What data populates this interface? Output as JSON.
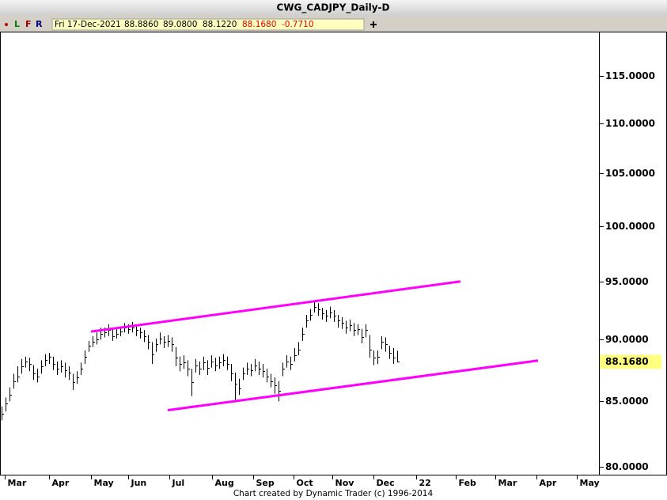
{
  "toolbar": {
    "buttons": [
      "L",
      "F",
      "R"
    ],
    "date": "Fri 17-Dec-2021",
    "open": "88.8860",
    "high": "89.0800",
    "low": "88.1220",
    "close": "88.1680",
    "change": "-0.7710"
  },
  "footer": "Chart created by Dynamic Trader  (c) 1996-2014",
  "chart_data": {
    "type": "ohlc",
    "title": "CWG_CADJPY_Daily-D",
    "log_scale": true,
    "color": "#000000",
    "xlim": [
      -0.4,
      151
    ],
    "ylim": [
      79.4,
      119.7
    ],
    "yticks": [
      {
        "value": 80,
        "label": "80.0000"
      },
      {
        "value": 85,
        "label": "85.0000"
      },
      {
        "value": 90,
        "label": "90.0000"
      },
      {
        "value": 95,
        "label": "95.0000"
      },
      {
        "value": 100,
        "label": "100.0000"
      },
      {
        "value": 105,
        "label": "105.0000"
      },
      {
        "value": 110,
        "label": "110.0000"
      },
      {
        "value": 115,
        "label": "115.0000"
      }
    ],
    "xticks": [
      {
        "value": 0.8,
        "label": "Mar"
      },
      {
        "value": 12,
        "label": "Apr"
      },
      {
        "value": 22.6,
        "label": "May"
      },
      {
        "value": 32,
        "label": "Jun"
      },
      {
        "value": 42.4,
        "label": "Jul"
      },
      {
        "value": 53.2,
        "label": "Aug"
      },
      {
        "value": 63.6,
        "label": "Sep"
      },
      {
        "value": 73.8,
        "label": "Oct"
      },
      {
        "value": 83.6,
        "label": "Nov"
      },
      {
        "value": 94,
        "label": "Dec"
      },
      {
        "value": 104.8,
        "label": "22"
      },
      {
        "value": 114.8,
        "label": "Feb"
      },
      {
        "value": 124.8,
        "label": "Mar"
      },
      {
        "value": 135.2,
        "label": "Apr"
      },
      {
        "value": 145.4,
        "label": "May"
      }
    ],
    "high": [
      84.6,
      85.3,
      86.1,
      87.2,
      87.8,
      88.4,
      88.6,
      88.5,
      87.9,
      87.6,
      88.3,
      88.8,
      88.9,
      88.6,
      88.2,
      88.3,
      88.1,
      87.8,
      87.2,
      87.4,
      88.1,
      89.1,
      89.9,
      90.3,
      90.6,
      91.0,
      91.0,
      91.3,
      91.0,
      90.9,
      91.1,
      91.4,
      91.3,
      91.5,
      91.2,
      91.0,
      90.8,
      90.4,
      89.8,
      90.1,
      90.6,
      90.3,
      90.4,
      90.2,
      89.4,
      88.6,
      88.7,
      88.3,
      87.6,
      88.4,
      88.2,
      88.6,
      88.3,
      88.7,
      88.5,
      88.6,
      88.8,
      88.6,
      88.0,
      87.3,
      86.8,
      87.7,
      88.1,
      88.0,
      88.4,
      88.2,
      88.0,
      87.6,
      87.2,
      86.9,
      86.6,
      88.1,
      88.7,
      88.6,
      89.3,
      89.8,
      91.0,
      92.1,
      92.6,
      93.2,
      93.1,
      92.7,
      92.5,
      92.8,
      92.5,
      92.1,
      91.9,
      91.6,
      91.7,
      91.4,
      91.3,
      90.9,
      91.3,
      90.4,
      89.1,
      89.1,
      90.3,
      90.2,
      89.5,
      89.3,
      89.08
    ],
    "low": [
      83.5,
      84.2,
      85.0,
      86.0,
      86.5,
      87.2,
      87.7,
      87.4,
      86.7,
      86.5,
      87.2,
      87.8,
      88.0,
      87.5,
      87.1,
      87.3,
      86.9,
      86.7,
      85.9,
      86.4,
      87.1,
      88.0,
      89.0,
      89.4,
      89.6,
      90.0,
      90.2,
      90.3,
      89.9,
      90.1,
      90.3,
      90.6,
      90.5,
      90.6,
      90.3,
      90.1,
      89.8,
      89.2,
      88.0,
      89.0,
      89.6,
      89.3,
      89.4,
      89.0,
      87.8,
      87.4,
      87.6,
      87.0,
      85.4,
      87.3,
      87.1,
      87.5,
      87.1,
      87.7,
      87.4,
      87.6,
      87.8,
      87.5,
      86.6,
      84.9,
      85.5,
      86.7,
      87.1,
      87.0,
      87.4,
      87.1,
      86.9,
      86.5,
      86.1,
      85.6,
      85.0,
      87.0,
      87.7,
      87.5,
      88.2,
      88.7,
      89.9,
      91.0,
      91.6,
      92.3,
      92.0,
      91.7,
      91.5,
      91.8,
      91.5,
      91.0,
      90.9,
      90.5,
      90.7,
      90.3,
      90.4,
      89.7,
      90.2,
      88.5,
      87.9,
      88.0,
      89.2,
      89.0,
      88.4,
      88.0,
      88.122
    ],
    "close": [
      84.0,
      84.8,
      85.5,
      86.6,
      87.0,
      87.8,
      88.2,
      88.0,
      87.2,
      87.0,
      87.8,
      88.3,
      88.6,
      88.0,
      87.6,
      87.8,
      87.5,
      87.3,
      86.5,
      86.9,
      87.6,
      88.6,
      89.5,
      89.8,
      90.0,
      90.5,
      90.6,
      90.8,
      90.3,
      90.5,
      90.7,
      91.0,
      90.9,
      91.0,
      90.8,
      90.6,
      90.3,
      89.8,
      88.8,
      89.6,
      90.1,
      89.8,
      89.9,
      89.6,
      88.5,
      88.0,
      88.1,
      87.6,
      86.5,
      87.9,
      87.6,
      88.1,
      87.7,
      88.2,
      87.9,
      88.1,
      88.3,
      88.0,
      87.2,
      86.4,
      86.0,
      87.2,
      87.6,
      87.5,
      87.9,
      87.6,
      87.4,
      87.0,
      86.6,
      86.3,
      85.8,
      87.6,
      88.2,
      88.0,
      88.7,
      89.2,
      90.5,
      91.6,
      92.1,
      92.8,
      92.6,
      92.2,
      92.0,
      92.3,
      92.0,
      91.6,
      91.4,
      91.0,
      91.2,
      90.8,
      90.9,
      90.2,
      90.8,
      89.2,
      88.5,
      88.6,
      89.8,
      89.6,
      88.9,
      88.5,
      88.168
    ],
    "price_marker": {
      "value": 88.168,
      "label": "88.1680"
    },
    "trendline_color": "#ff00ff",
    "trendlines": [
      {
        "x": [
          22.6,
          116
        ],
        "y": [
          90.68,
          95.0
        ]
      },
      {
        "x": [
          42,
          135.6
        ],
        "y": [
          84.3,
          88.27
        ]
      }
    ]
  }
}
